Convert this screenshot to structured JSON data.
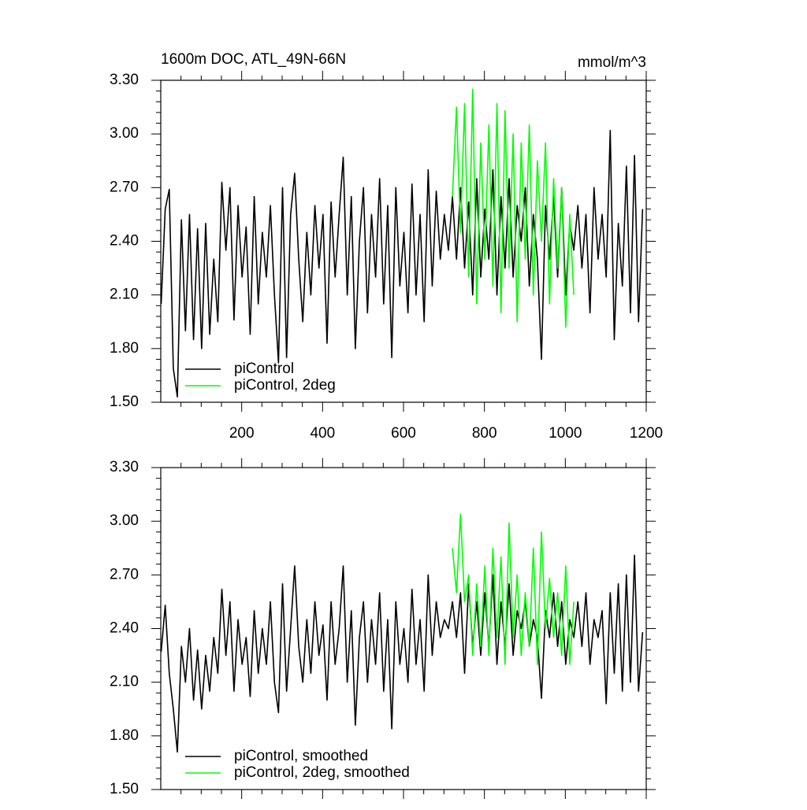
{
  "chart_data": [
    {
      "type": "line",
      "title": "1600m DOC, ATL_49N-66N",
      "units": "mmol/m^3",
      "legend": "lower left",
      "xlim": [
        0,
        1200
      ],
      "xticks": [
        200,
        400,
        600,
        800,
        1000,
        1200
      ],
      "ylim": [
        1.5,
        3.3
      ],
      "yticks": [
        {
          "value": 1.5,
          "label": "1.50"
        },
        {
          "value": 1.8,
          "label": "1.80"
        },
        {
          "value": 2.1,
          "label": "2.10"
        },
        {
          "value": 2.4,
          "label": "2.40"
        },
        {
          "value": 2.7,
          "label": "2.70"
        },
        {
          "value": 3.0,
          "label": "3.00"
        },
        {
          "value": 3.3,
          "label": "3.30"
        }
      ],
      "x": [
        1,
        11,
        21,
        31,
        41,
        51,
        61,
        71,
        81,
        91,
        101,
        111,
        121,
        131,
        141,
        151,
        161,
        171,
        181,
        191,
        201,
        211,
        221,
        231,
        241,
        251,
        261,
        271,
        281,
        291,
        301,
        311,
        321,
        331,
        341,
        351,
        361,
        371,
        381,
        391,
        401,
        411,
        421,
        431,
        441,
        451,
        461,
        471,
        481,
        491,
        501,
        511,
        521,
        531,
        541,
        551,
        561,
        571,
        581,
        591,
        601,
        611,
        621,
        631,
        641,
        651,
        661,
        671,
        681,
        691,
        701,
        711,
        721,
        731,
        741,
        751,
        761,
        771,
        781,
        791,
        801,
        811,
        821,
        831,
        841,
        851,
        861,
        871,
        881,
        891,
        901,
        911,
        921,
        931,
        941,
        951,
        961,
        971,
        981,
        991,
        1001,
        1011,
        1021,
        1031,
        1041,
        1051,
        1061,
        1071,
        1081,
        1091,
        1101,
        1111,
        1121,
        1131,
        1141,
        1151,
        1161,
        1171,
        1181,
        1191
      ],
      "series": [
        {
          "name": "piControl",
          "color": "#000000",
          "values": [
            2.05,
            2.58,
            2.69,
            1.69,
            1.53,
            2.52,
            1.9,
            2.55,
            1.85,
            2.47,
            1.8,
            2.5,
            1.88,
            2.3,
            1.95,
            2.73,
            2.35,
            2.7,
            1.96,
            2.6,
            2.2,
            2.48,
            1.88,
            2.65,
            2.05,
            2.45,
            2.2,
            2.6,
            2.1,
            1.72,
            2.7,
            1.75,
            2.55,
            2.78,
            2.3,
            1.95,
            2.45,
            2.1,
            2.6,
            2.25,
            2.55,
            1.83,
            2.62,
            2.2,
            2.55,
            2.87,
            2.1,
            2.65,
            1.8,
            2.4,
            2.7,
            2.0,
            2.55,
            2.2,
            2.75,
            2.05,
            2.6,
            1.75,
            2.7,
            2.15,
            2.45,
            2.0,
            2.72,
            2.1,
            2.55,
            1.95,
            2.8,
            2.15,
            2.68,
            2.3,
            2.55,
            2.35,
            2.65,
            2.3,
            2.7,
            2.25,
            2.62,
            2.1,
            2.75,
            2.2,
            2.58,
            2.3,
            2.8,
            2.1,
            2.65,
            2.25,
            2.75,
            2.2,
            2.6,
            2.4,
            2.7,
            2.15,
            2.55,
            2.3,
            1.74,
            2.6,
            2.3,
            2.65,
            2.2,
            2.7,
            2.1,
            2.5,
            2.35,
            2.6,
            2.25,
            2.55,
            2.0,
            2.7,
            2.3,
            2.55,
            2.2,
            3.02,
            1.85,
            2.5,
            2.15,
            2.82,
            2.0,
            2.88,
            1.95,
            2.58
          ]
        },
        {
          "name": "piControl, 2deg",
          "color": "#00ff00",
          "values": [
            null,
            null,
            null,
            null,
            null,
            null,
            null,
            null,
            null,
            null,
            null,
            null,
            null,
            null,
            null,
            null,
            null,
            null,
            null,
            null,
            null,
            null,
            null,
            null,
            null,
            null,
            null,
            null,
            null,
            null,
            null,
            null,
            null,
            null,
            null,
            null,
            null,
            null,
            null,
            null,
            null,
            null,
            null,
            null,
            null,
            null,
            null,
            null,
            null,
            null,
            null,
            null,
            null,
            null,
            null,
            null,
            null,
            null,
            null,
            null,
            null,
            null,
            null,
            null,
            null,
            null,
            null,
            null,
            null,
            null,
            null,
            null,
            2.65,
            3.15,
            2.45,
            3.17,
            2.2,
            3.25,
            2.05,
            2.95,
            2.3,
            3.05,
            2.15,
            3.17,
            2.0,
            3.13,
            2.25,
            3.0,
            1.95,
            2.95,
            2.3,
            3.05,
            2.1,
            2.85,
            2.4,
            2.95,
            2.05,
            2.75,
            2.25,
            2.7,
            1.92,
            2.55,
            2.1,
            null,
            null,
            null,
            null,
            null,
            null,
            null,
            null,
            null,
            null,
            null,
            null,
            null,
            null,
            null,
            null,
            null
          ]
        }
      ]
    },
    {
      "type": "line",
      "legend": "lower left",
      "xlim": [
        0,
        1200
      ],
      "xticks": [
        200,
        400,
        600,
        800,
        1000,
        1200
      ],
      "ylim": [
        1.5,
        3.3
      ],
      "yticks": [
        {
          "value": 1.5,
          "label": "1.50"
        },
        {
          "value": 1.8,
          "label": "1.80"
        },
        {
          "value": 2.1,
          "label": "2.10"
        },
        {
          "value": 2.4,
          "label": "2.40"
        },
        {
          "value": 2.7,
          "label": "2.70"
        },
        {
          "value": 3.0,
          "label": "3.00"
        },
        {
          "value": 3.3,
          "label": "3.30"
        }
      ],
      "x": [
        1,
        11,
        21,
        31,
        41,
        51,
        61,
        71,
        81,
        91,
        101,
        111,
        121,
        131,
        141,
        151,
        161,
        171,
        181,
        191,
        201,
        211,
        221,
        231,
        241,
        251,
        261,
        271,
        281,
        291,
        301,
        311,
        321,
        331,
        341,
        351,
        361,
        371,
        381,
        391,
        401,
        411,
        421,
        431,
        441,
        451,
        461,
        471,
        481,
        491,
        501,
        511,
        521,
        531,
        541,
        551,
        561,
        571,
        581,
        591,
        601,
        611,
        621,
        631,
        641,
        651,
        661,
        671,
        681,
        691,
        701,
        711,
        721,
        731,
        741,
        751,
        761,
        771,
        781,
        791,
        801,
        811,
        821,
        831,
        841,
        851,
        861,
        871,
        881,
        891,
        901,
        911,
        921,
        931,
        941,
        951,
        961,
        971,
        981,
        991,
        1001,
        1011,
        1021,
        1031,
        1041,
        1051,
        1061,
        1071,
        1081,
        1091,
        1101,
        1111,
        1121,
        1131,
        1141,
        1151,
        1161,
        1171,
        1181,
        1191
      ],
      "series": [
        {
          "name": "piControl, smoothed",
          "color": "#000000",
          "values": [
            2.27,
            2.53,
            2.15,
            1.95,
            1.71,
            2.3,
            2.1,
            2.4,
            2.0,
            2.28,
            1.95,
            2.25,
            2.05,
            2.35,
            2.15,
            2.62,
            2.25,
            2.55,
            2.05,
            2.45,
            2.2,
            2.35,
            2.02,
            2.5,
            2.15,
            2.4,
            2.2,
            2.55,
            2.1,
            1.93,
            2.65,
            2.05,
            2.4,
            2.75,
            2.3,
            2.1,
            2.45,
            2.15,
            2.55,
            2.25,
            2.42,
            2.0,
            2.55,
            2.2,
            2.4,
            2.75,
            2.1,
            2.5,
            1.86,
            2.35,
            2.55,
            2.1,
            2.45,
            2.2,
            2.6,
            2.05,
            2.45,
            1.84,
            2.55,
            2.2,
            2.4,
            2.1,
            2.62,
            2.2,
            2.45,
            2.05,
            2.7,
            2.25,
            2.55,
            2.35,
            2.45,
            2.4,
            2.55,
            2.35,
            2.6,
            2.15,
            2.65,
            2.3,
            2.55,
            2.25,
            2.6,
            2.3,
            2.7,
            2.2,
            2.55,
            2.3,
            2.65,
            2.25,
            2.5,
            2.4,
            2.55,
            2.3,
            2.45,
            2.35,
            2.01,
            2.5,
            2.35,
            2.6,
            2.3,
            2.55,
            2.2,
            2.45,
            2.35,
            2.55,
            2.3,
            2.6,
            2.2,
            2.45,
            2.35,
            2.5,
            1.98,
            2.6,
            2.15,
            2.65,
            2.05,
            2.7,
            2.1,
            2.81,
            2.05,
            2.38
          ]
        },
        {
          "name": "piControl, 2deg, smoothed",
          "color": "#00ff00",
          "values": [
            null,
            null,
            null,
            null,
            null,
            null,
            null,
            null,
            null,
            null,
            null,
            null,
            null,
            null,
            null,
            null,
            null,
            null,
            null,
            null,
            null,
            null,
            null,
            null,
            null,
            null,
            null,
            null,
            null,
            null,
            null,
            null,
            null,
            null,
            null,
            null,
            null,
            null,
            null,
            null,
            null,
            null,
            null,
            null,
            null,
            null,
            null,
            null,
            null,
            null,
            null,
            null,
            null,
            null,
            null,
            null,
            null,
            null,
            null,
            null,
            null,
            null,
            null,
            null,
            null,
            null,
            null,
            null,
            null,
            null,
            null,
            null,
            2.85,
            2.6,
            3.04,
            2.55,
            2.7,
            2.25,
            2.65,
            2.3,
            2.75,
            2.25,
            2.85,
            2.35,
            2.8,
            2.2,
            2.99,
            2.35,
            2.7,
            2.25,
            2.6,
            2.3,
            2.85,
            2.2,
            2.94,
            2.4,
            2.68,
            2.35,
            2.6,
            2.25,
            2.75,
            2.2,
            2.55,
            null,
            null,
            null,
            null,
            null,
            null,
            null,
            null,
            null,
            null,
            null,
            null,
            null,
            null,
            null,
            null,
            null
          ]
        }
      ]
    }
  ]
}
